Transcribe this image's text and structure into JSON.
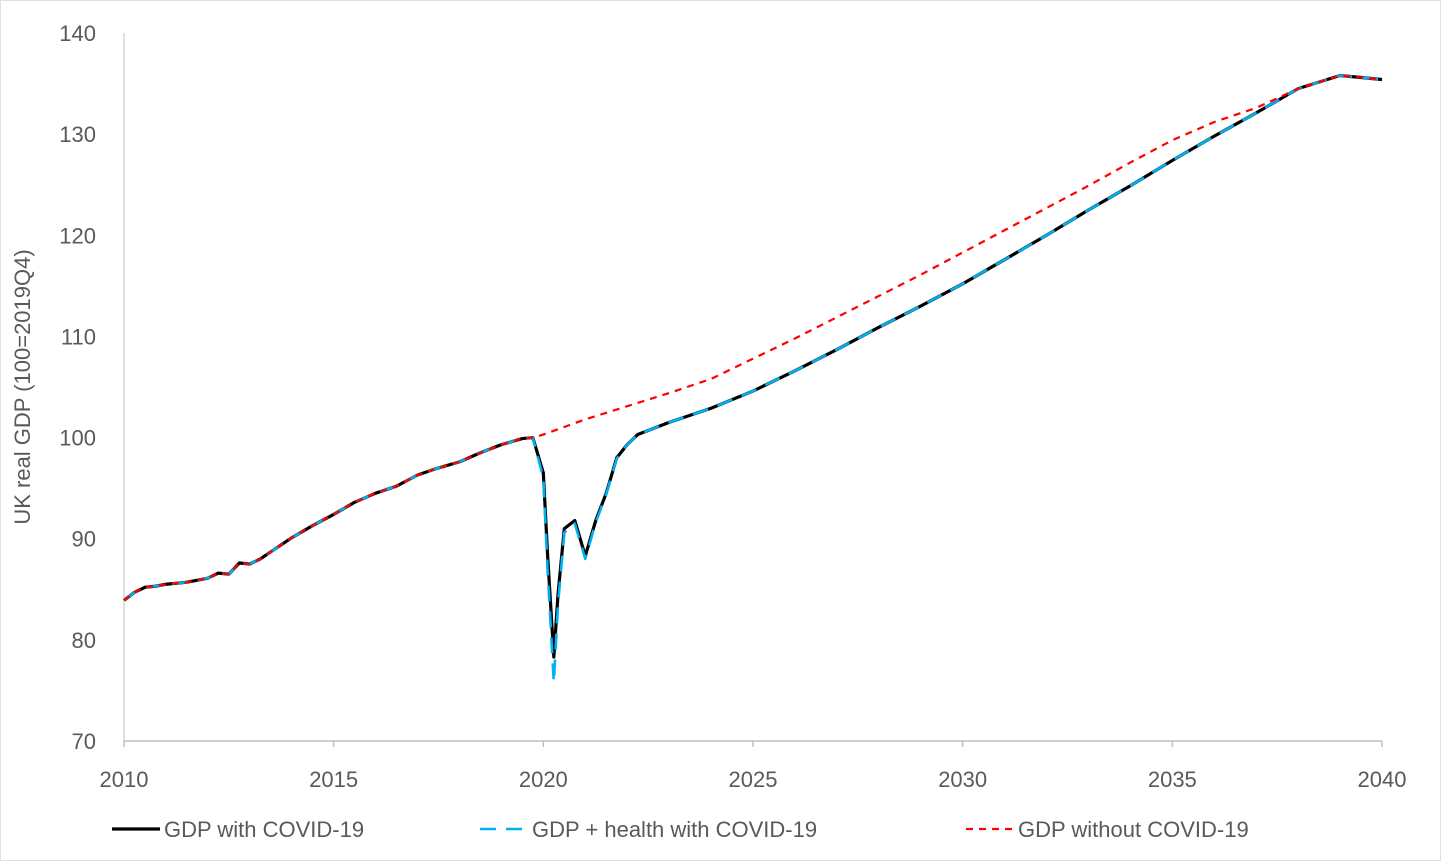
{
  "chart_data": {
    "type": "line",
    "title": "",
    "xlabel": "",
    "ylabel": "UK real GDP (100=2019Q4)",
    "xlim": [
      2010,
      2040
    ],
    "ylim": [
      70,
      140
    ],
    "x_ticks": [
      2010,
      2015,
      2020,
      2025,
      2030,
      2035,
      2040
    ],
    "x_tick_labels": [
      "2010",
      "2015",
      "2020",
      "2025",
      "2030",
      "2035",
      "2040"
    ],
    "y_ticks": [
      70,
      80,
      90,
      100,
      110,
      120,
      130,
      140
    ],
    "y_tick_labels": [
      "70",
      "80",
      "90",
      "100",
      "110",
      "120",
      "130",
      "140"
    ],
    "grid": false,
    "legend_position": "bottom",
    "series": [
      {
        "name": "GDP with COVID-19",
        "color": "#000000",
        "dash": "solid",
        "points": [
          [
            2010.0,
            83.9
          ],
          [
            2010.25,
            84.7
          ],
          [
            2010.5,
            85.2
          ],
          [
            2010.75,
            85.3
          ],
          [
            2011.0,
            85.5
          ],
          [
            2011.25,
            85.6
          ],
          [
            2011.5,
            85.7
          ],
          [
            2011.75,
            85.9
          ],
          [
            2012.0,
            86.1
          ],
          [
            2012.25,
            86.6
          ],
          [
            2012.5,
            86.5
          ],
          [
            2012.75,
            87.6
          ],
          [
            2013.0,
            87.5
          ],
          [
            2013.25,
            88.0
          ],
          [
            2013.5,
            88.7
          ],
          [
            2013.75,
            89.4
          ],
          [
            2014.0,
            90.1
          ],
          [
            2014.5,
            91.3
          ],
          [
            2015.0,
            92.4
          ],
          [
            2015.5,
            93.6
          ],
          [
            2016.0,
            94.5
          ],
          [
            2016.5,
            95.2
          ],
          [
            2017.0,
            96.3
          ],
          [
            2017.5,
            97.0
          ],
          [
            2018.0,
            97.6
          ],
          [
            2018.5,
            98.5
          ],
          [
            2019.0,
            99.3
          ],
          [
            2019.5,
            99.9
          ],
          [
            2019.75,
            100.0
          ],
          [
            2020.0,
            96.5
          ],
          [
            2020.1,
            88.5
          ],
          [
            2020.25,
            78.3
          ],
          [
            2020.35,
            84.5
          ],
          [
            2020.5,
            91.0
          ],
          [
            2020.75,
            91.8
          ],
          [
            2021.0,
            88.3
          ],
          [
            2021.25,
            91.8
          ],
          [
            2021.5,
            94.5
          ],
          [
            2021.75,
            98.0
          ],
          [
            2022.0,
            99.3
          ],
          [
            2022.25,
            100.3
          ],
          [
            2022.5,
            100.7
          ],
          [
            2023.0,
            101.5
          ],
          [
            2024.0,
            102.9
          ],
          [
            2025.0,
            104.6
          ],
          [
            2026.0,
            106.6
          ],
          [
            2027.0,
            108.7
          ],
          [
            2028.0,
            110.9
          ],
          [
            2029.0,
            113.0
          ],
          [
            2030.0,
            115.2
          ],
          [
            2031.0,
            117.6
          ],
          [
            2032.0,
            120.0
          ],
          [
            2033.0,
            122.5
          ],
          [
            2034.0,
            124.9
          ],
          [
            2035.0,
            127.4
          ],
          [
            2036.0,
            129.8
          ],
          [
            2037.0,
            132.1
          ],
          [
            2038.0,
            134.5
          ],
          [
            2039.0,
            135.8
          ],
          [
            2040.0,
            135.4
          ]
        ]
      },
      {
        "name": "GDP + health with COVID-19",
        "color": "#00B0F0",
        "dash": "long-dash",
        "points": [
          [
            2010.0,
            83.9
          ],
          [
            2010.25,
            84.7
          ],
          [
            2010.5,
            85.2
          ],
          [
            2010.75,
            85.3
          ],
          [
            2011.0,
            85.5
          ],
          [
            2011.25,
            85.6
          ],
          [
            2011.5,
            85.7
          ],
          [
            2011.75,
            85.9
          ],
          [
            2012.0,
            86.1
          ],
          [
            2012.25,
            86.6
          ],
          [
            2012.5,
            86.5
          ],
          [
            2012.75,
            87.6
          ],
          [
            2013.0,
            87.5
          ],
          [
            2013.25,
            88.0
          ],
          [
            2013.5,
            88.7
          ],
          [
            2013.75,
            89.4
          ],
          [
            2014.0,
            90.1
          ],
          [
            2014.5,
            91.3
          ],
          [
            2015.0,
            92.4
          ],
          [
            2015.5,
            93.6
          ],
          [
            2016.0,
            94.5
          ],
          [
            2016.5,
            95.2
          ],
          [
            2017.0,
            96.3
          ],
          [
            2017.5,
            97.0
          ],
          [
            2018.0,
            97.6
          ],
          [
            2018.5,
            98.5
          ],
          [
            2019.0,
            99.3
          ],
          [
            2019.5,
            99.9
          ],
          [
            2019.75,
            100.0
          ],
          [
            2020.0,
            96.0
          ],
          [
            2020.1,
            87.0
          ],
          [
            2020.25,
            75.8
          ],
          [
            2020.35,
            83.5
          ],
          [
            2020.5,
            90.6
          ],
          [
            2020.75,
            91.5
          ],
          [
            2021.0,
            88.0
          ],
          [
            2021.25,
            91.6
          ],
          [
            2021.5,
            94.4
          ],
          [
            2021.75,
            97.9
          ],
          [
            2022.0,
            99.3
          ],
          [
            2022.25,
            100.3
          ],
          [
            2022.5,
            100.7
          ],
          [
            2023.0,
            101.5
          ],
          [
            2024.0,
            102.9
          ],
          [
            2025.0,
            104.6
          ],
          [
            2026.0,
            106.6
          ],
          [
            2027.0,
            108.7
          ],
          [
            2028.0,
            110.9
          ],
          [
            2029.0,
            113.0
          ],
          [
            2030.0,
            115.2
          ],
          [
            2031.0,
            117.6
          ],
          [
            2032.0,
            120.0
          ],
          [
            2033.0,
            122.5
          ],
          [
            2034.0,
            124.9
          ],
          [
            2035.0,
            127.4
          ],
          [
            2036.0,
            129.8
          ],
          [
            2037.0,
            132.1
          ],
          [
            2038.0,
            134.5
          ],
          [
            2039.0,
            135.8
          ],
          [
            2040.0,
            135.4
          ]
        ]
      },
      {
        "name": "GDP without COVID-19",
        "color": "#FF0000",
        "dash": "short-dash",
        "points": [
          [
            2010.0,
            83.9
          ],
          [
            2010.25,
            84.7
          ],
          [
            2010.5,
            85.2
          ],
          [
            2010.75,
            85.3
          ],
          [
            2011.0,
            85.5
          ],
          [
            2011.25,
            85.6
          ],
          [
            2011.5,
            85.7
          ],
          [
            2011.75,
            85.9
          ],
          [
            2012.0,
            86.1
          ],
          [
            2012.25,
            86.6
          ],
          [
            2012.5,
            86.5
          ],
          [
            2012.75,
            87.6
          ],
          [
            2013.0,
            87.5
          ],
          [
            2013.25,
            88.0
          ],
          [
            2013.5,
            88.7
          ],
          [
            2013.75,
            89.4
          ],
          [
            2014.0,
            90.1
          ],
          [
            2014.5,
            91.3
          ],
          [
            2015.0,
            92.4
          ],
          [
            2015.5,
            93.6
          ],
          [
            2016.0,
            94.5
          ],
          [
            2016.5,
            95.2
          ],
          [
            2017.0,
            96.3
          ],
          [
            2017.5,
            97.0
          ],
          [
            2018.0,
            97.6
          ],
          [
            2018.5,
            98.5
          ],
          [
            2019.0,
            99.3
          ],
          [
            2019.5,
            99.9
          ],
          [
            2019.75,
            100.0
          ],
          [
            2020.0,
            100.3
          ],
          [
            2021.0,
            101.8
          ],
          [
            2022.0,
            103.1
          ],
          [
            2023.0,
            104.4
          ],
          [
            2024.0,
            105.8
          ],
          [
            2025.0,
            107.8
          ],
          [
            2026.0,
            109.8
          ],
          [
            2027.0,
            111.9
          ],
          [
            2028.0,
            114.0
          ],
          [
            2029.0,
            116.1
          ],
          [
            2030.0,
            118.3
          ],
          [
            2031.0,
            120.5
          ],
          [
            2032.0,
            122.7
          ],
          [
            2033.0,
            124.9
          ],
          [
            2034.0,
            127.2
          ],
          [
            2035.0,
            129.4
          ],
          [
            2036.0,
            131.2
          ],
          [
            2037.0,
            132.6
          ],
          [
            2038.0,
            134.5
          ],
          [
            2039.0,
            135.8
          ],
          [
            2040.0,
            135.4
          ]
        ]
      }
    ]
  }
}
